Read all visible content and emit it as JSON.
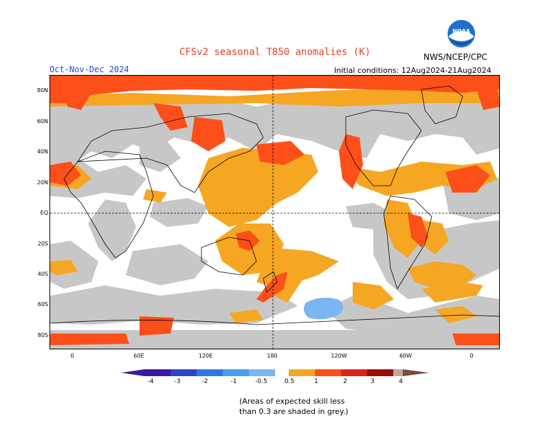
{
  "header": {
    "title": "CFSv2 seasonal T850 anomalies (K)",
    "agency": "NWS/NCEP/CPC",
    "logo_text": "NOAA",
    "season": "Oct-Nov-Dec 2024",
    "initial_conditions": "Initial conditions: 12Aug2024-21Aug2024"
  },
  "axes": {
    "lat_labels": [
      "80N",
      "60N",
      "40N",
      "20N",
      "EQ",
      "20S",
      "40S",
      "60S",
      "80S"
    ],
    "lon_labels": [
      "0",
      "60E",
      "120E",
      "180",
      "120W",
      "60W",
      "0"
    ]
  },
  "colorbar": {
    "labels": [
      "-4",
      "-3",
      "-2",
      "-1",
      "-0.5",
      "0.5",
      "1",
      "2",
      "3",
      "4"
    ],
    "colors": {
      "neg4": "#3a1aa0",
      "neg3": "#2c45c8",
      "neg2": "#2f78e0",
      "neg1": "#4a9cee",
      "neg05": "#7bb6f2",
      "neutral": "#ffffff",
      "pos05": "#f5a623",
      "pos1": "#fd4f1a",
      "pos2": "#d8241a",
      "pos3": "#9b0d0a",
      "pos4": "#c9a399",
      "pos5": "#7a4a3e"
    }
  },
  "map_colors": {
    "grey_low_skill": "#c7c7c7",
    "ocean_neutral": "#ffffff",
    "warm": "#f5a623",
    "hot": "#fd4f1a",
    "very_hot": "#d8241a",
    "cool": "#7bb6f2"
  },
  "note": {
    "line1": "(Areas of expected skill less",
    "line2": "than 0.3 are shaded in grey.)"
  }
}
